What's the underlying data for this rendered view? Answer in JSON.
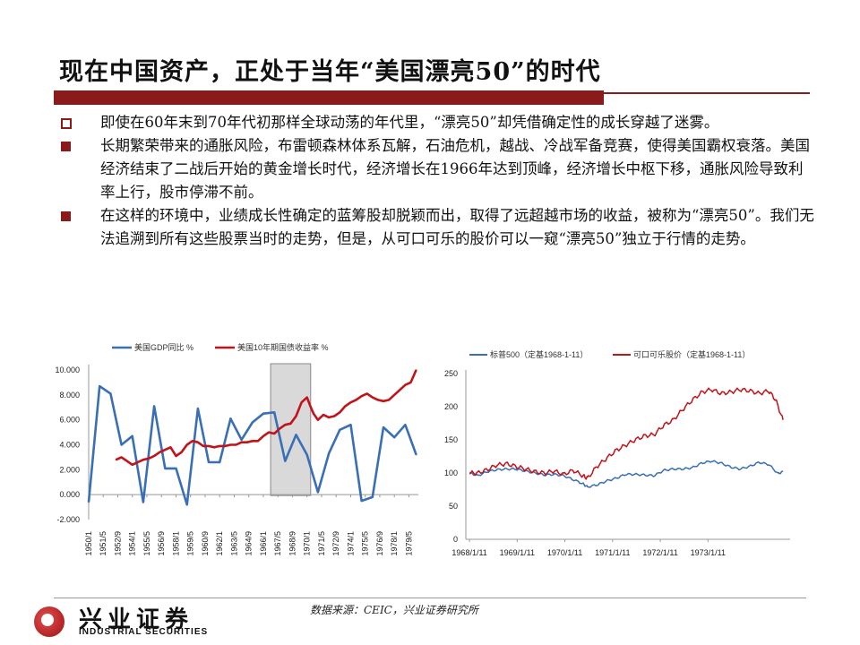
{
  "slide": {
    "title": "现在中国资产，正处于当年“美国漂亮50”的时代",
    "bullets": [
      {
        "marker": "hollow",
        "text": "即使在60年末到70年代初那样全球动荡的年代里，“漂亮50”却凭借确定性的成长穿越了迷雾。"
      },
      {
        "marker": "solid",
        "text": "长期繁荣带来的通胀风险，布雷顿森林体系瓦解，石油危机，越战、冷战军备竞赛，使得美国霸权衰落。美国经济结束了二战后开始的黄金增长时代，经济增长在1966年达到顶峰，经济增长中枢下移，通胀风险导致利率上行，股市停滞不前。"
      },
      {
        "marker": "solid",
        "text": "在这样的环境中，业绩成长性确定的蓝筹股却脱颖而出，取得了远超越市场的收益，被称为“漂亮50”。我们无法追溯到所有这些股票当时的走势，但是，从可口可乐的股价可以一窥“漂亮50”独立于行情的走势。"
      }
    ],
    "source": "数据来源：CEIC，兴业证券研究所",
    "logo": {
      "cn": "兴业证券",
      "en": "INDUSTRIAL SECURITIES"
    },
    "colors": {
      "accent": "#8b1a1a",
      "blue": "#3a6fb5",
      "red": "#c0141a"
    }
  },
  "chart_data": [
    {
      "type": "line",
      "title": "",
      "legend_position": "top",
      "ylim": [
        -2,
        10
      ],
      "y_ticks": [
        "10.000",
        "8.000",
        "6.000",
        "4.000",
        "2.000",
        "0.000",
        "-2.000"
      ],
      "x_ticks": [
        "1950/1",
        "1951/5",
        "1952/9",
        "1954/1",
        "1955/5",
        "1956/9",
        "1958/1",
        "1959/5",
        "1960/9",
        "1962/1",
        "1963/5",
        "1964/9",
        "1966/1",
        "1967/5",
        "1968/9",
        "1970/1",
        "1971/5",
        "1972/9",
        "1974/1",
        "1975/5",
        "1976/9",
        "1978/1",
        "1979/5"
      ],
      "shaded_region": [
        "1966/9",
        "1970/5"
      ],
      "grid": false,
      "series": [
        {
          "name": "美国GDP同比 %",
          "color": "#3a6fb5",
          "x": [
            1950,
            1951,
            1952,
            1953,
            1954,
            1955,
            1956,
            1957,
            1958,
            1959,
            1960,
            1961,
            1962,
            1963,
            1964,
            1965,
            1966,
            1967,
            1968,
            1969,
            1970,
            1971,
            1972,
            1973,
            1974,
            1975,
            1976,
            1977,
            1978,
            1979,
            1980
          ],
          "values": [
            -0.6,
            8.7,
            8.1,
            4.0,
            4.7,
            -0.6,
            7.1,
            2.1,
            2.1,
            -0.8,
            6.9,
            2.6,
            2.6,
            6.1,
            4.4,
            5.8,
            6.5,
            6.6,
            2.7,
            4.8,
            3.2,
            0.2,
            3.3,
            5.2,
            5.6,
            -0.5,
            -0.2,
            5.4,
            4.6,
            5.6,
            3.2
          ]
        },
        {
          "name": "美国10年期国债收益率 %",
          "color": "#c0141a",
          "x": [
            1952.5,
            1953,
            1953.5,
            1954,
            1954.5,
            1955,
            1955.5,
            1956,
            1956.5,
            1957,
            1957.5,
            1958,
            1958.5,
            1959,
            1959.5,
            1960,
            1960.5,
            1961,
            1961.5,
            1962,
            1962.5,
            1963,
            1963.5,
            1964,
            1964.5,
            1965,
            1965.5,
            1966,
            1966.5,
            1967,
            1967.5,
            1968,
            1968.5,
            1969,
            1969.5,
            1970,
            1970.3,
            1970.6,
            1971,
            1971.5,
            1972,
            1972.5,
            1973,
            1973.5,
            1974,
            1974.5,
            1975,
            1975.5,
            1976,
            1976.5,
            1977,
            1977.5,
            1978,
            1978.5,
            1979,
            1979.5,
            1980
          ],
          "values": [
            2.8,
            3.0,
            2.7,
            2.4,
            2.6,
            2.8,
            2.9,
            3.1,
            3.4,
            3.6,
            3.8,
            3.1,
            3.4,
            4.0,
            4.3,
            4.2,
            3.9,
            3.9,
            3.8,
            3.9,
            3.9,
            4.0,
            4.0,
            4.2,
            4.2,
            4.3,
            4.3,
            4.7,
            5.0,
            4.9,
            5.3,
            5.6,
            5.7,
            6.3,
            7.4,
            7.8,
            7.1,
            6.5,
            6.0,
            6.4,
            6.2,
            6.3,
            6.6,
            7.1,
            7.4,
            7.6,
            7.9,
            8.1,
            7.8,
            7.6,
            7.5,
            7.6,
            8.0,
            8.4,
            8.8,
            9.0,
            10.0
          ]
        }
      ]
    },
    {
      "type": "line",
      "title": "",
      "legend_position": "top",
      "ylim": [
        0,
        250
      ],
      "y_ticks": [
        250,
        200,
        150,
        100,
        50,
        0
      ],
      "x_ticks": [
        "1968/1/11",
        "1969/1/11",
        "1970/1/11",
        "1971/1/11",
        "1972/1/11",
        "1973/1/11"
      ],
      "grid": false,
      "series": [
        {
          "name": "标普500（定基1968-1-11）",
          "color": "#3a6fb5",
          "x": [
            1968.03,
            1968.2,
            1968.4,
            1968.6,
            1968.8,
            1969.0,
            1969.2,
            1969.4,
            1969.6,
            1969.8,
            1970.0,
            1970.2,
            1970.4,
            1970.5,
            1970.7,
            1970.9,
            1971.1,
            1971.3,
            1971.5,
            1971.7,
            1971.9,
            1972.1,
            1972.3,
            1972.5,
            1972.7,
            1972.9,
            1973.1,
            1973.3,
            1973.5,
            1973.7,
            1973.9,
            1974.1,
            1974.3,
            1974.5,
            1974.6
          ],
          "values": [
            100,
            96,
            102,
            105,
            106,
            106,
            103,
            100,
            97,
            98,
            96,
            90,
            84,
            79,
            82,
            88,
            92,
            98,
            98,
            97,
            96,
            104,
            106,
            106,
            108,
            115,
            118,
            115,
            109,
            106,
            110,
            116,
            113,
            99,
            102
          ]
        },
        {
          "name": "可口可乐股价（定基1968-1-11）",
          "color": "#c0141a",
          "x": [
            1968.03,
            1968.2,
            1968.4,
            1968.6,
            1968.8,
            1969.0,
            1969.2,
            1969.4,
            1969.6,
            1969.8,
            1970.0,
            1970.2,
            1970.4,
            1970.5,
            1970.7,
            1970.9,
            1971.1,
            1971.3,
            1971.5,
            1971.7,
            1971.9,
            1972.1,
            1972.3,
            1972.5,
            1972.7,
            1972.9,
            1973.1,
            1973.3,
            1973.5,
            1973.7,
            1973.9,
            1974.1,
            1974.3,
            1974.45,
            1974.6
          ],
          "values": [
            100,
            100,
            105,
            112,
            114,
            110,
            106,
            102,
            100,
            103,
            98,
            104,
            96,
            92,
            110,
            122,
            134,
            142,
            150,
            156,
            158,
            172,
            180,
            196,
            210,
            222,
            226,
            220,
            222,
            226,
            224,
            220,
            224,
            210,
            180
          ]
        }
      ]
    }
  ]
}
